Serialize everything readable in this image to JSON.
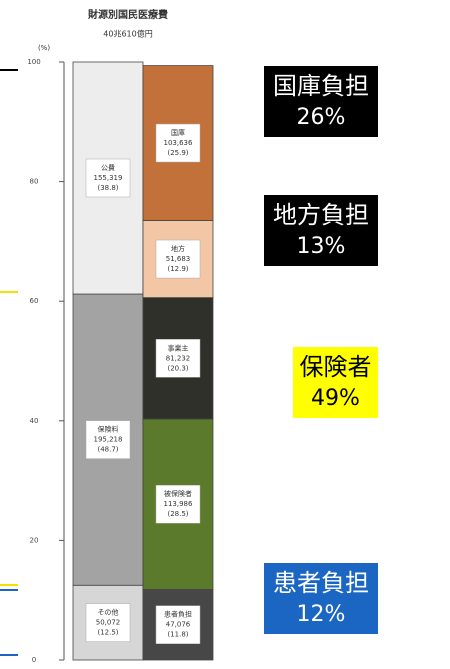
{
  "chart_data": {
    "type": "stacked_bar",
    "title": "財源別国民医療費",
    "subtitle": "40兆610億円",
    "y_unit": "(%)",
    "categories": [
      null,
      null
    ],
    "ylim": [
      0,
      100
    ],
    "yticks": [
      0,
      20,
      40,
      60,
      80,
      100
    ],
    "series": [
      {
        "name": "その他",
        "color": "#d6d6d6",
        "values": [
          12.5,
          null
        ],
        "value_labels": [
          "(12.5)",
          null
        ],
        "amounts": [
          "50,072",
          null
        ]
      },
      {
        "name": "保険料",
        "color": "#a3a3a3",
        "values": [
          48.7,
          null
        ],
        "value_labels": [
          "(48.7)",
          null
        ],
        "amounts": [
          "195,218",
          null
        ]
      },
      {
        "name": "公費",
        "color": "#ededed",
        "values": [
          38.8,
          null
        ],
        "value_labels": [
          "(38.8)",
          null
        ],
        "amounts": [
          "155,319",
          null
        ]
      },
      {
        "name": "患者負担",
        "color": "#474747",
        "values": [
          null,
          11.8
        ],
        "value_labels": [
          null,
          "(11.8)"
        ],
        "amounts": [
          null,
          "47,076"
        ]
      },
      {
        "name": "被保険者",
        "color": "#5c7a2c",
        "values": [
          null,
          28.5
        ],
        "value_labels": [
          null,
          "(28.5)"
        ],
        "amounts": [
          null,
          "113,986"
        ]
      },
      {
        "name": "事業主",
        "color": "#30302b",
        "values": [
          null,
          20.3
        ],
        "value_labels": [
          null,
          "(20.3)"
        ],
        "amounts": [
          null,
          "81,232"
        ]
      },
      {
        "name": "地方",
        "color": "#f3c6a6",
        "values": [
          null,
          12.9
        ],
        "value_labels": [
          null,
          "(12.9)"
        ],
        "amounts": [
          null,
          "51,683"
        ]
      },
      {
        "name": "国庫",
        "color": "#c2713b",
        "values": [
          null,
          25.9
        ],
        "value_labels": [
          null,
          "(25.9)"
        ],
        "amounts": [
          null,
          "103,636"
        ]
      }
    ],
    "annotations": [
      {
        "label": "国庫負担",
        "value_label": "26%",
        "background": "#000000",
        "text_color": "#ffffff"
      },
      {
        "label": "地方負担",
        "value_label": "13%",
        "background": "#000000",
        "text_color": "#ffffff"
      },
      {
        "label": "保険者",
        "value_label": "49%",
        "background": "#ffff00",
        "text_color": "#000000"
      },
      {
        "label": "患者負担",
        "value_label": "12%",
        "background": "#1a66c2",
        "text_color": "#ffffff"
      }
    ]
  }
}
